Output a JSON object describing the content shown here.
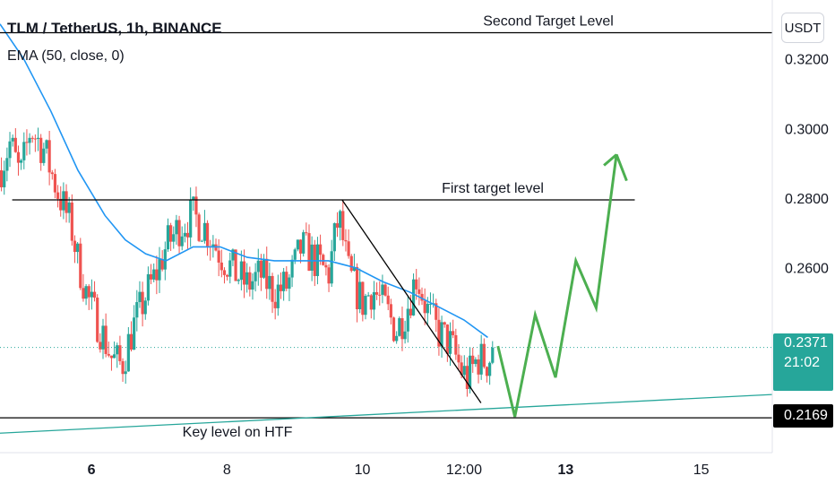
{
  "header": {
    "title": "TLM / TetherUS, 1h, BINANCE",
    "indicator": "EMA (50, close, 0)",
    "currency_button": "USDT"
  },
  "price_badges": {
    "last_price": "0.2371",
    "countdown": "21:02",
    "key_level": "0.2169"
  },
  "colors": {
    "up": "#26a69a",
    "down": "#ef5350",
    "ema": "#2196f3",
    "projection": "#4caf50",
    "trendline": "#26a69a",
    "level_line": "#000000"
  },
  "chart_data": {
    "type": "candlestick",
    "symbol": "TLM / TetherUS",
    "timeframe": "1h",
    "exchange": "BINANCE",
    "x_ticks": [
      "6",
      "8",
      "10",
      "12:00",
      "13",
      "15"
    ],
    "y_ticks": [
      "0.3200",
      "0.3000",
      "0.2800",
      "0.2600"
    ],
    "ylim": [
      0.2069,
      0.3369
    ],
    "xlim_days": [
      4.65,
      16.05
    ],
    "price_path": [
      [
        4.65,
        0.288
      ],
      [
        4.8,
        0.296
      ],
      [
        4.95,
        0.286
      ],
      [
        5.1,
        0.3
      ],
      [
        5.3,
        0.294
      ],
      [
        5.5,
        0.282
      ],
      [
        5.7,
        0.272
      ],
      [
        5.8,
        0.262
      ],
      [
        5.95,
        0.251
      ],
      [
        6.1,
        0.244
      ],
      [
        6.3,
        0.234
      ],
      [
        6.45,
        0.232
      ],
      [
        6.6,
        0.242
      ],
      [
        6.8,
        0.252
      ],
      [
        6.95,
        0.258
      ],
      [
        7.1,
        0.266
      ],
      [
        7.3,
        0.272
      ],
      [
        7.5,
        0.275
      ],
      [
        7.7,
        0.271
      ],
      [
        7.9,
        0.264
      ],
      [
        8.1,
        0.259
      ],
      [
        8.3,
        0.255
      ],
      [
        8.5,
        0.258
      ],
      [
        8.7,
        0.253
      ],
      [
        8.9,
        0.255
      ],
      [
        9.1,
        0.266
      ],
      [
        9.3,
        0.262
      ],
      [
        9.5,
        0.258
      ],
      [
        9.65,
        0.275
      ],
      [
        9.8,
        0.258
      ],
      [
        10.0,
        0.25
      ],
      [
        10.15,
        0.254
      ],
      [
        10.35,
        0.248
      ],
      [
        10.5,
        0.242
      ],
      [
        10.65,
        0.248
      ],
      [
        10.8,
        0.258
      ],
      [
        10.95,
        0.248
      ],
      [
        11.1,
        0.242
      ],
      [
        11.3,
        0.238
      ],
      [
        11.45,
        0.231
      ],
      [
        11.55,
        0.228
      ],
      [
        11.7,
        0.234
      ],
      [
        11.85,
        0.233
      ],
      [
        11.95,
        0.2371
      ]
    ],
    "series": [
      {
        "name": "EMA (50, close, 0)",
        "points": [
          [
            4.65,
            0.33
          ],
          [
            5.0,
            0.32
          ],
          [
            5.4,
            0.305
          ],
          [
            5.8,
            0.288
          ],
          [
            6.2,
            0.275
          ],
          [
            6.5,
            0.268
          ],
          [
            6.8,
            0.264
          ],
          [
            7.1,
            0.262
          ],
          [
            7.5,
            0.266
          ],
          [
            7.9,
            0.266
          ],
          [
            8.3,
            0.263
          ],
          [
            8.7,
            0.262
          ],
          [
            9.1,
            0.262
          ],
          [
            9.5,
            0.262
          ],
          [
            9.9,
            0.26
          ],
          [
            10.3,
            0.256
          ],
          [
            10.7,
            0.253
          ],
          [
            11.1,
            0.249
          ],
          [
            11.5,
            0.245
          ],
          [
            11.85,
            0.24
          ]
        ]
      }
    ],
    "horizontal_levels": [
      {
        "label": "Second Target Level",
        "price": 0.3275,
        "x_start": 4.65,
        "x_end": 16.05
      },
      {
        "label": "First target level",
        "price": 0.2795,
        "x_start": 4.83,
        "x_end": 14.02
      },
      {
        "label": "Key level on HTF",
        "price": 0.2169,
        "x_start": 4.65,
        "x_end": 16.05
      }
    ],
    "trendlines": [
      {
        "name": "descending",
        "points": [
          [
            9.7,
            0.2795
          ],
          [
            11.75,
            0.2212
          ]
        ]
      },
      {
        "name": "ascending",
        "points": [
          [
            4.65,
            0.2125
          ],
          [
            16.05,
            0.2236
          ]
        ]
      }
    ],
    "projection": {
      "points": [
        [
          12.0,
          0.2375
        ],
        [
          12.25,
          0.2172
        ],
        [
          12.55,
          0.2465
        ],
        [
          12.85,
          0.2285
        ],
        [
          13.15,
          0.262
        ],
        [
          13.45,
          0.2485
        ],
        [
          13.75,
          0.2925
        ],
        [
          13.9,
          0.285
        ]
      ]
    }
  }
}
